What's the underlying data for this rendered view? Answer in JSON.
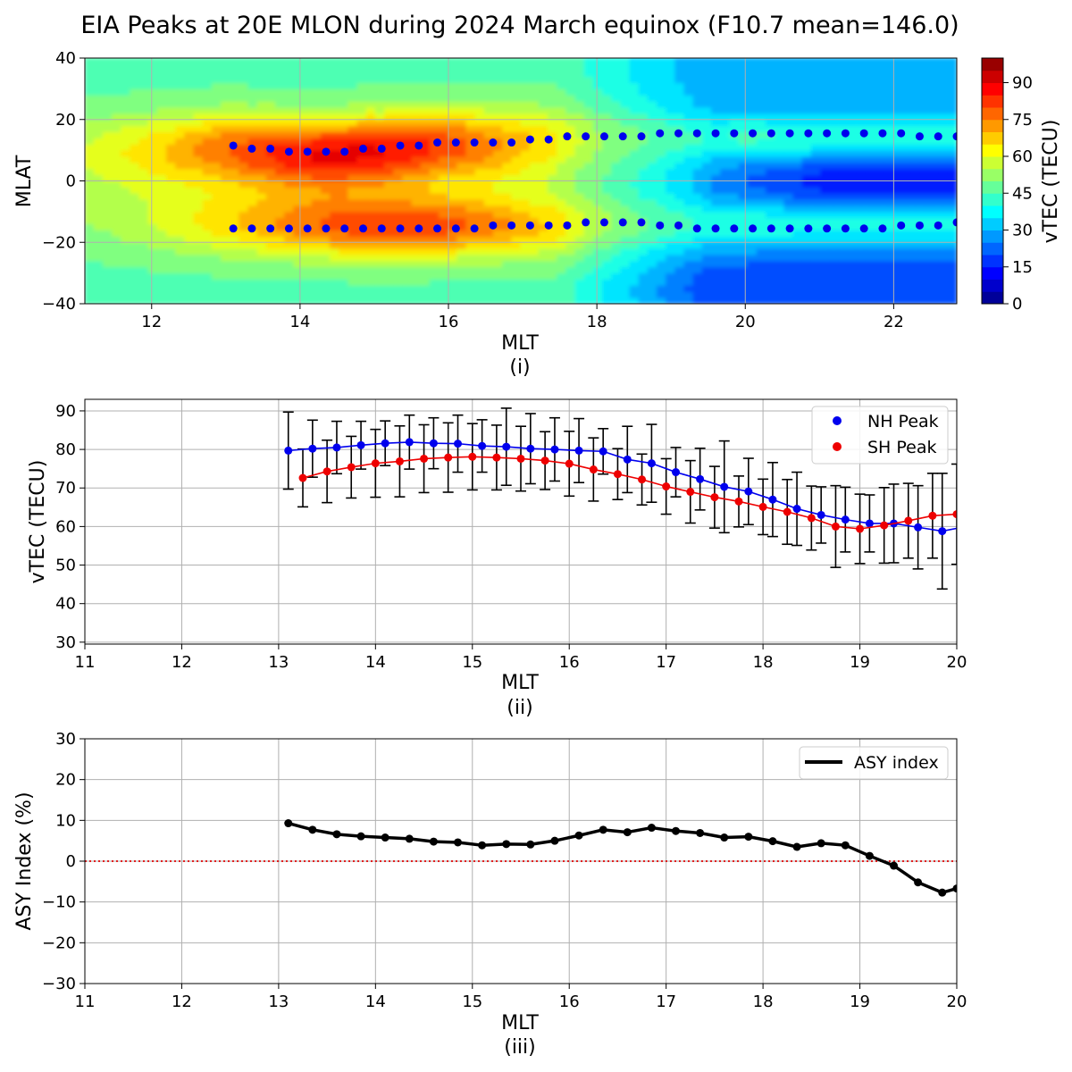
{
  "title": "EIA Peaks at 20E MLON during 2024 March equinox (F10.7 mean=146.0)",
  "colors": {
    "nh": "#0000ee",
    "sh": "#ee0000",
    "asy": "#000000",
    "zero_line": "#dd0000",
    "grid": "#b0b0b0"
  },
  "chart_data": [
    {
      "type": "heatmap",
      "panel_label": "(i)",
      "xlabel": "MLT",
      "ylabel": "MLAT",
      "xlim": [
        11.1,
        22.85
      ],
      "ylim": [
        -40,
        40
      ],
      "xticks": [
        12,
        14,
        16,
        18,
        20,
        22
      ],
      "yticks": [
        -40,
        -20,
        0,
        20,
        40
      ],
      "grid": true,
      "colormap": "jet",
      "colorbar": {
        "label": "vTEC (TECU)",
        "range": [
          0,
          100
        ],
        "ticks": [
          0,
          15,
          30,
          45,
          60,
          75,
          90
        ]
      },
      "nh_peaks": {
        "mlt": [
          13.1,
          13.35,
          13.6,
          13.85,
          14.1,
          14.35,
          14.6,
          14.85,
          15.1,
          15.35,
          15.6,
          15.85,
          16.1,
          16.35,
          16.6,
          16.85,
          17.1,
          17.35,
          17.6,
          17.85,
          18.1,
          18.35,
          18.6,
          18.85,
          19.1,
          19.35,
          19.6,
          19.85,
          20.1,
          20.35,
          20.6,
          20.85,
          21.1,
          21.35,
          21.6,
          21.85,
          22.1,
          22.35,
          22.6,
          22.85
        ],
        "mlat": [
          11.5,
          10.5,
          10.5,
          9.5,
          9.5,
          9.5,
          9.5,
          10.5,
          10.5,
          11.5,
          11.5,
          12.5,
          12.5,
          12.5,
          12.5,
          12.5,
          13.5,
          13.5,
          14.5,
          14.5,
          14.5,
          14.5,
          14.5,
          15.5,
          15.5,
          15.5,
          15.5,
          15.5,
          15.5,
          15.5,
          15.5,
          15.5,
          15.5,
          15.5,
          15.5,
          15.5,
          15.5,
          14.5,
          14.5,
          14.5
        ]
      },
      "sh_peaks": {
        "mlt": [
          13.1,
          13.35,
          13.6,
          13.85,
          14.1,
          14.35,
          14.6,
          14.85,
          15.1,
          15.35,
          15.6,
          15.85,
          16.1,
          16.35,
          16.6,
          16.85,
          17.1,
          17.35,
          17.6,
          17.85,
          18.1,
          18.35,
          18.6,
          18.85,
          19.1,
          19.35,
          19.6,
          19.85,
          20.1,
          20.35,
          20.6,
          20.85,
          21.1,
          21.35,
          21.6,
          21.85,
          22.1,
          22.35,
          22.6,
          22.85
        ],
        "mlat": [
          -15.5,
          -15.5,
          -15.5,
          -15.5,
          -15.5,
          -15.5,
          -15.5,
          -15.5,
          -15.5,
          -15.5,
          -15.5,
          -15.5,
          -15.5,
          -15.5,
          -14.5,
          -14.5,
          -14.5,
          -14.5,
          -14.5,
          -13.5,
          -13.5,
          -13.5,
          -13.5,
          -14.5,
          -14.5,
          -15.5,
          -15.5,
          -15.5,
          -15.5,
          -15.5,
          -15.5,
          -15.5,
          -15.5,
          -15.5,
          -15.5,
          -15.5,
          -14.5,
          -14.5,
          -14.5,
          -13.5
        ]
      }
    },
    {
      "type": "line",
      "panel_label": "(ii)",
      "xlabel": "MLT",
      "ylabel": "vTEC (TECU)",
      "xlim": [
        11,
        20
      ],
      "ylim": [
        29.5,
        93
      ],
      "xticks": [
        11,
        12,
        13,
        14,
        15,
        16,
        17,
        18,
        19,
        20
      ],
      "yticks": [
        30,
        40,
        50,
        60,
        70,
        80,
        90
      ],
      "grid": true,
      "legend": "top-right",
      "series": [
        {
          "name": "NH Peak",
          "x": [
            13.1,
            13.35,
            13.6,
            13.85,
            14.1,
            14.35,
            14.6,
            14.85,
            15.1,
            15.35,
            15.6,
            15.85,
            16.1,
            16.35,
            16.6,
            16.85,
            17.1,
            17.35,
            17.6,
            17.85,
            18.1,
            18.35,
            18.6,
            18.85,
            19.1,
            19.35,
            19.6,
            19.85,
            20.1
          ],
          "y": [
            79.7,
            80.2,
            80.5,
            81.1,
            81.6,
            81.9,
            81.6,
            81.5,
            80.9,
            80.7,
            80.2,
            80.0,
            79.7,
            79.5,
            77.4,
            76.4,
            74.1,
            72.3,
            70.3,
            69.1,
            67.0,
            64.6,
            63.0,
            61.8,
            60.8,
            60.8,
            59.8,
            58.8,
            60.0
          ],
          "err": [
            10,
            7.4,
            6.8,
            6.2,
            5.8,
            7.0,
            6.6,
            7.4,
            6.8,
            10.0,
            9.1,
            8.2,
            8.3,
            5.9,
            8.6,
            10.1,
            6.4,
            8.0,
            11.9,
            8.6,
            9.6,
            9.5,
            7.3,
            8.4,
            7.4,
            10.2,
            10.8,
            15.0,
            10.0
          ]
        },
        {
          "name": "SH Peak",
          "x": [
            13.25,
            13.5,
            13.75,
            14.0,
            14.25,
            14.5,
            14.75,
            15.0,
            15.25,
            15.5,
            15.75,
            16.0,
            16.25,
            16.5,
            16.75,
            17.0,
            17.25,
            17.5,
            17.75,
            18.0,
            18.25,
            18.5,
            18.75,
            19.0,
            19.25,
            19.5,
            19.75,
            20.0
          ],
          "y": [
            72.6,
            74.3,
            75.4,
            76.4,
            76.9,
            77.6,
            77.9,
            78.1,
            77.9,
            77.6,
            77.1,
            76.3,
            74.8,
            73.6,
            72.2,
            70.4,
            69.0,
            67.6,
            66.5,
            65.1,
            63.8,
            62.2,
            60.0,
            59.4,
            60.3,
            61.5,
            62.8,
            63.2
          ],
          "err": [
            7.5,
            8.1,
            8.0,
            8.8,
            9.2,
            8.8,
            9.0,
            8.6,
            8.4,
            8.4,
            7.5,
            8.4,
            8.2,
            6.6,
            6.6,
            7.2,
            8.1,
            8.0,
            6.6,
            7.2,
            8.4,
            8.3,
            10.6,
            9.0,
            9.8,
            9.7,
            11.0,
            13.0
          ]
        }
      ]
    },
    {
      "type": "line",
      "panel_label": "(iii)",
      "xlabel": "MLT",
      "ylabel": "ASY Index (%)",
      "xlim": [
        11,
        20
      ],
      "ylim": [
        -30,
        30
      ],
      "xticks": [
        11,
        12,
        13,
        14,
        15,
        16,
        17,
        18,
        19,
        20
      ],
      "yticks": [
        -30,
        -20,
        -10,
        0,
        10,
        20,
        30
      ],
      "grid": true,
      "legend": "top-right",
      "reference_line": {
        "y": 0,
        "style": "dotted"
      },
      "series": [
        {
          "name": "ASY index",
          "x": [
            13.1,
            13.35,
            13.6,
            13.85,
            14.1,
            14.35,
            14.6,
            14.85,
            15.1,
            15.35,
            15.6,
            15.85,
            16.1,
            16.35,
            16.6,
            16.85,
            17.1,
            17.35,
            17.6,
            17.85,
            18.1,
            18.35,
            18.6,
            18.85,
            19.1,
            19.35,
            19.6,
            19.85,
            20.0
          ],
          "y": [
            9.3,
            7.7,
            6.6,
            6.1,
            5.8,
            5.5,
            4.8,
            4.6,
            3.9,
            4.2,
            4.1,
            5.0,
            6.3,
            7.7,
            7.1,
            8.2,
            7.4,
            6.9,
            5.8,
            6.0,
            4.9,
            3.5,
            4.4,
            3.9,
            1.3,
            -1.1,
            -5.2,
            -7.7,
            -6.7
          ]
        }
      ]
    }
  ]
}
